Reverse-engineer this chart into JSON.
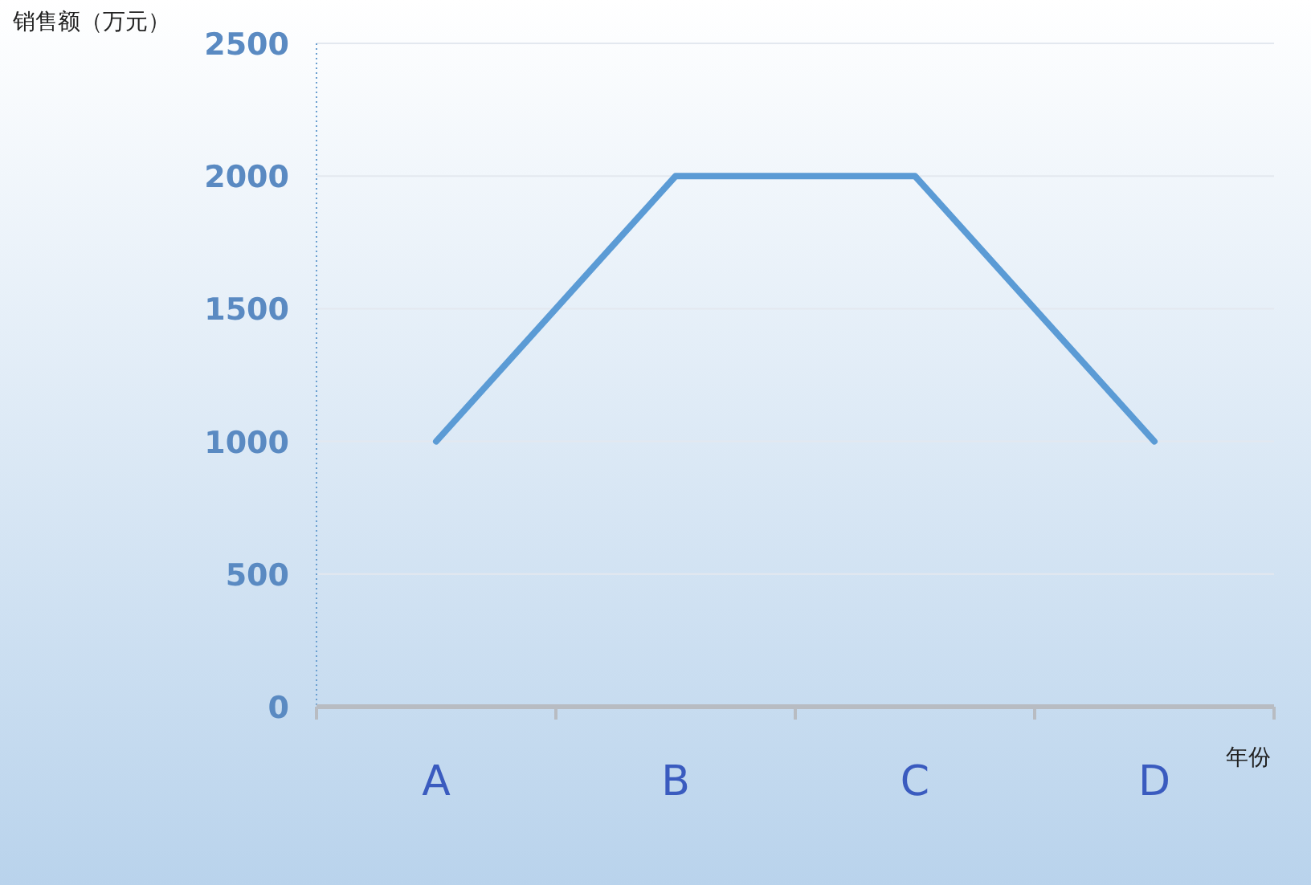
{
  "chart_data": {
    "type": "line",
    "categories": [
      "A",
      "B",
      "C",
      "D"
    ],
    "series": [
      {
        "color": "#5b9bd5",
        "values": [
          1000,
          2000,
          2000,
          1000
        ]
      }
    ],
    "ylim": [
      0,
      2500
    ],
    "yticks": [
      0,
      500,
      1000,
      1500,
      2000,
      2500
    ],
    "ylabel": "销售额（万元）",
    "xlabel": "年份",
    "grid": "y",
    "marker": "none",
    "line_style": "solid"
  }
}
